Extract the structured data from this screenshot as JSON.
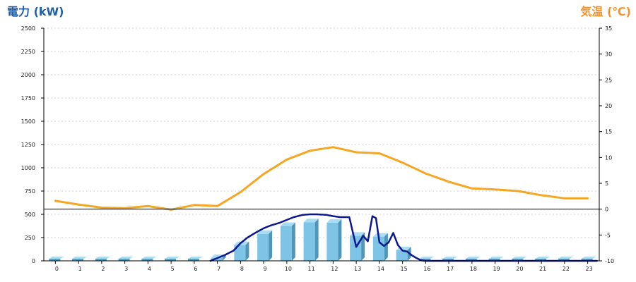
{
  "chart_data": {
    "type": "bar",
    "left_axis_title": "電力 (kW)",
    "right_axis_title": "気温 (℃)",
    "colors": {
      "left_title": "#1f5fa8",
      "right_title": "#f5932b",
      "bars": "#7ec4e6",
      "power_line": "#0b1890",
      "temp_line": "#f5a623"
    },
    "categories": [
      "0",
      "1",
      "2",
      "3",
      "4",
      "5",
      "6",
      "7",
      "8",
      "9",
      "10",
      "11",
      "12",
      "13",
      "14",
      "15",
      "16",
      "17",
      "18",
      "19",
      "20",
      "21",
      "22",
      "23"
    ],
    "y_left": {
      "min": 0,
      "max": 2500,
      "ticks": [
        "0",
        "250",
        "500",
        "750",
        "1000",
        "1250",
        "1500",
        "1750",
        "2000",
        "2250",
        "2500"
      ]
    },
    "y_right": {
      "min": -10,
      "max": 35,
      "ticks": [
        "-10",
        "-5",
        "0",
        "5",
        "10",
        "15",
        "20",
        "25",
        "30",
        "35"
      ]
    },
    "grid": true,
    "bar_series": {
      "values": [
        0,
        0,
        0,
        0,
        0,
        0,
        0,
        30,
        170,
        290,
        375,
        415,
        410,
        270,
        260,
        115,
        0,
        0,
        0,
        0,
        0,
        0,
        0,
        0
      ]
    },
    "power_line": {
      "x": [
        6.7,
        7.0,
        7.3,
        7.7,
        8.0,
        8.3,
        8.7,
        9.0,
        9.3,
        9.7,
        10.0,
        10.3,
        10.7,
        11.0,
        11.3,
        11.7,
        12.0,
        12.3,
        12.7,
        13.0,
        13.3,
        13.5,
        13.7,
        13.85,
        14.0,
        14.2,
        14.4,
        14.6,
        14.8,
        15.0,
        15.2,
        15.4,
        15.6,
        15.8,
        16.0,
        23.4
      ],
      "values": [
        0,
        30,
        60,
        110,
        190,
        250,
        310,
        350,
        380,
        410,
        440,
        470,
        495,
        500,
        500,
        495,
        480,
        470,
        470,
        150,
        270,
        210,
        480,
        460,
        200,
        160,
        200,
        300,
        170,
        110,
        100,
        60,
        30,
        5,
        0,
        0
      ]
    },
    "temp_line": {
      "values": [
        1.6,
        0.9,
        0.3,
        0.2,
        0.6,
        -0.1,
        0.8,
        0.6,
        3.3,
        6.8,
        9.6,
        11.3,
        12.0,
        11.0,
        10.8,
        9.0,
        6.9,
        5.3,
        4.0,
        3.8,
        3.5,
        2.7,
        2.1,
        2.1
      ]
    }
  }
}
